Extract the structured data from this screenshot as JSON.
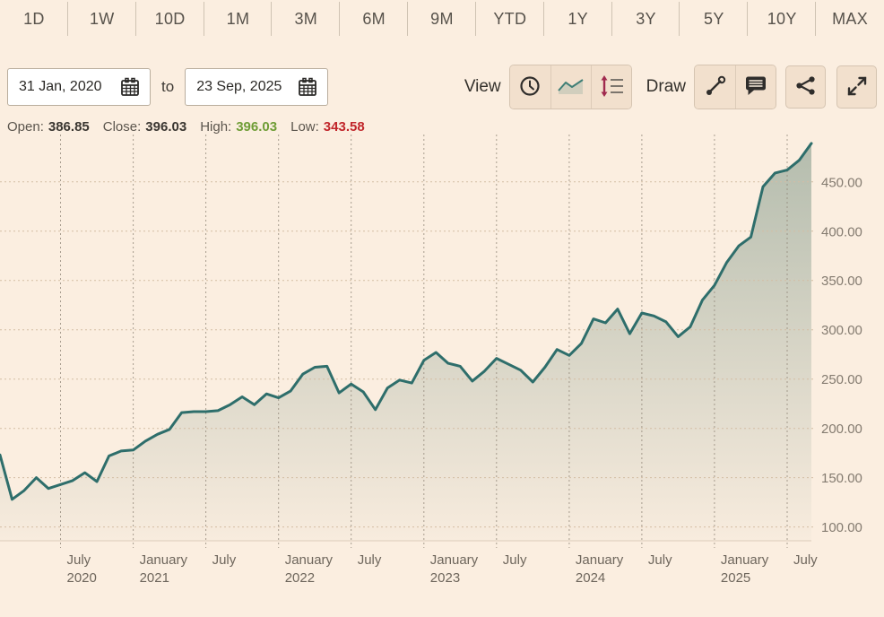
{
  "window": {
    "bg_color": "#fbeee0"
  },
  "range_selector": {
    "buttons": [
      "1D",
      "1W",
      "10D",
      "1M",
      "3M",
      "6M",
      "9M",
      "YTD",
      "1Y",
      "3Y",
      "5Y",
      "10Y",
      "MAX"
    ]
  },
  "date_range": {
    "from": "31 Jan, 2020",
    "separator": "to",
    "to": "23 Sep, 2025",
    "calendar_icon": "calendar-icon"
  },
  "toolbar": {
    "view_label": "View",
    "view_buttons": [
      {
        "name": "time-view-button",
        "icon": "clock-icon"
      },
      {
        "name": "line-chart-view-button",
        "icon": "line-chart-icon"
      },
      {
        "name": "price-scale-button",
        "icon": "price-scale-icon"
      }
    ],
    "draw_label": "Draw",
    "draw_buttons": [
      {
        "name": "trendline-tool-button",
        "icon": "trendline-icon"
      },
      {
        "name": "annotation-tool-button",
        "icon": "comment-icon"
      }
    ],
    "share_button": {
      "icon": "share-icon"
    },
    "fullscreen_button": {
      "icon": "expand-arrows-icon"
    },
    "accent_maroon": "#a02a4e",
    "button_bg": "#f2e0cd"
  },
  "ohlc": {
    "open_label": "Open:",
    "open_value": "386.85",
    "close_label": "Close:",
    "close_value": "396.03",
    "high_label": "High:",
    "high_value": "396.03",
    "low_label": "Low:",
    "low_value": "343.58",
    "value_color": "#3a3631",
    "high_color": "#6f9d36",
    "low_color": "#c1262b"
  },
  "chart_data": {
    "type": "area",
    "series": [
      {
        "name": "price",
        "interval": "monthly",
        "start": "31 Jan, 2020",
        "end": "23 Sep, 2025",
        "values": [
          173,
          128,
          137,
          150,
          139,
          143,
          147,
          155,
          146,
          172,
          177,
          178,
          187,
          194,
          199,
          216,
          217,
          217,
          218,
          224,
          232,
          224,
          235,
          231,
          238,
          255,
          262,
          263,
          236,
          245,
          237,
          219,
          241,
          249,
          246,
          269,
          277,
          266,
          263,
          248,
          258,
          271,
          265,
          259,
          247,
          262,
          280,
          274,
          286,
          311,
          307,
          321,
          296,
          317,
          314,
          308,
          293,
          303,
          330,
          345,
          368,
          385,
          394,
          445,
          459,
          462,
          472,
          489
        ]
      }
    ],
    "x_ticks": [
      {
        "month": "July",
        "year": "2020",
        "i": 5
      },
      {
        "month": "January",
        "year": "2021",
        "i": 11
      },
      {
        "month": "July",
        "year": "",
        "i": 17
      },
      {
        "month": "January",
        "year": "2022",
        "i": 23
      },
      {
        "month": "July",
        "year": "",
        "i": 29
      },
      {
        "month": "January",
        "year": "2023",
        "i": 35
      },
      {
        "month": "July",
        "year": "",
        "i": 41
      },
      {
        "month": "January",
        "year": "2024",
        "i": 47
      },
      {
        "month": "July",
        "year": "",
        "i": 53
      },
      {
        "month": "January",
        "year": "2025",
        "i": 59
      },
      {
        "month": "July",
        "year": "",
        "i": 65
      }
    ],
    "y_ticks": [
      450,
      400,
      350,
      300,
      250,
      200,
      150,
      100
    ],
    "y_tick_format": "two_decimals",
    "ylim": [
      86,
      498
    ],
    "grid": true,
    "legend": "none",
    "line_color": "#2e6e6b",
    "fill_color": "#5e8070",
    "h_grid_color": "#d3bda4",
    "v_grid_color": "#94897b",
    "axis_label_color": "#847b70",
    "x_label_color": "#6e665c"
  }
}
